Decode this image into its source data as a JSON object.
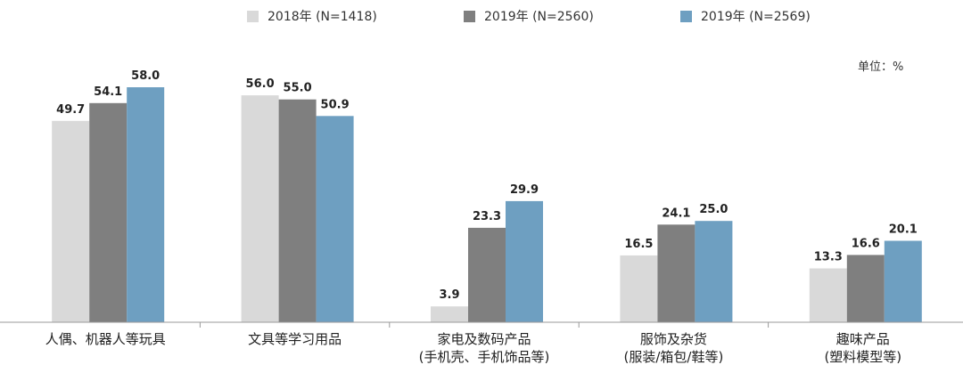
{
  "unit_label": "单位：%",
  "chart_data": {
    "type": "bar",
    "categories": [
      [
        "人偶、机器人等玩具"
      ],
      [
        "文具等学习用品"
      ],
      [
        "家电及数码产品",
        "(手机壳、手机饰品等)"
      ],
      [
        "服饰及杂货",
        "(服装/箱包/鞋等)"
      ],
      [
        "趣味产品",
        "(塑料模型等)"
      ]
    ],
    "series": [
      {
        "name": "2018年  (N=1418)",
        "color": "#d9d9d9",
        "values": [
          49.7,
          56.0,
          3.9,
          16.5,
          13.3
        ],
        "labels": [
          "49.7",
          "56.0",
          "3.9",
          "16.5",
          "13.3"
        ]
      },
      {
        "name": "2019年  (N=2560)",
        "color": "#7f7f7f",
        "values": [
          54.1,
          55.0,
          23.3,
          24.1,
          16.6
        ],
        "labels": [
          "54.1",
          "55.0",
          "23.3",
          "24.1",
          "16.6"
        ]
      },
      {
        "name": "2019年  (N=2569)",
        "color": "#6e9fc1",
        "values": [
          58.0,
          50.9,
          29.9,
          25.0,
          20.1
        ],
        "labels": [
          "58.0",
          "50.9",
          "29.9",
          "25.0",
          "20.1"
        ]
      }
    ],
    "ylim": [
      0,
      63
    ],
    "grid": false,
    "legend_position": "top"
  }
}
